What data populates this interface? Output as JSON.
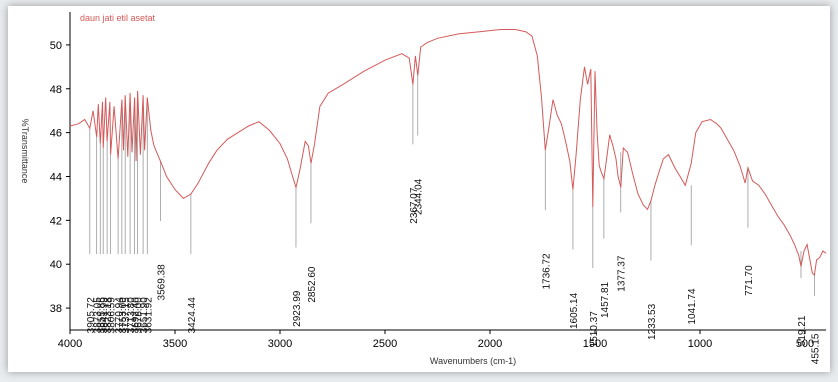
{
  "chart_data": {
    "type": "line",
    "title": "",
    "xlabel": "Wavenumbers (cm-1)",
    "ylabel": "%Transmittance",
    "xlim": [
      4000,
      400
    ],
    "ylim": [
      37,
      51.5
    ],
    "x_reversed": true,
    "x_ticks": [
      4000,
      3500,
      3000,
      2500,
      2000,
      1500,
      1000,
      500
    ],
    "y_ticks": [
      38,
      40,
      42,
      44,
      46,
      48,
      50
    ],
    "grid": false,
    "legend_position": "top-left",
    "series": [
      {
        "name": "daun jati etil asetat",
        "color": "#d45a5a",
        "x": [
          4000,
          3960,
          3930,
          3905.72,
          3890,
          3873.05,
          3865,
          3855.85,
          3845,
          3841.99,
          3830,
          3823.18,
          3810,
          3806.59,
          3790,
          3770.94,
          3753.0,
          3745,
          3737.15,
          3725,
          3713.8,
          3705,
          3692.4,
          3685,
          3678.0,
          3665,
          3651.9,
          3645,
          3631.92,
          3615,
          3600,
          3569.38,
          3540,
          3500,
          3460,
          3424.44,
          3390,
          3340,
          3300,
          3250,
          3200,
          3150,
          3100,
          3050,
          3000,
          2965,
          2940,
          2923.99,
          2905,
          2880,
          2865,
          2852.6,
          2835,
          2810,
          2770,
          2700,
          2600,
          2500,
          2420,
          2385,
          2367.07,
          2355,
          2344.04,
          2330,
          2300,
          2250,
          2150,
          2050,
          1950,
          1880,
          1830,
          1800,
          1775,
          1755,
          1736.72,
          1720,
          1700,
          1680,
          1660,
          1640,
          1620,
          1605.14,
          1590,
          1570,
          1550,
          1535,
          1520,
          1510.37,
          1500,
          1490,
          1480,
          1470,
          1457.81,
          1445,
          1430,
          1415,
          1400,
          1390,
          1377.37,
          1365,
          1345,
          1320,
          1295,
          1270,
          1250,
          1233.53,
          1215,
          1195,
          1175,
          1150,
          1120,
          1095,
          1070,
          1041.74,
          1020,
          990,
          950,
          920,
          900,
          870,
          840,
          810,
          785,
          771.7,
          750,
          720,
          690,
          660,
          630,
          600,
          570,
          550,
          530,
          519.21,
          505,
          490,
          475,
          465,
          455.15,
          445,
          430,
          415,
          400
        ],
        "y": [
          46.3,
          46.4,
          46.6,
          46.2,
          47.0,
          45.8,
          47.3,
          45.5,
          47.4,
          45.3,
          47.6,
          45.6,
          47.4,
          45.0,
          47.2,
          44.8,
          47.5,
          45.2,
          47.7,
          44.9,
          47.8,
          45.1,
          47.6,
          44.7,
          47.9,
          45.0,
          47.7,
          45.2,
          47.6,
          46.1,
          45.4,
          44.7,
          44.0,
          43.4,
          43.0,
          43.2,
          43.7,
          44.6,
          45.2,
          45.7,
          46.0,
          46.3,
          46.5,
          46.1,
          45.5,
          44.8,
          44.0,
          43.5,
          44.3,
          45.6,
          45.4,
          44.6,
          45.5,
          47.2,
          47.8,
          48.2,
          48.8,
          49.3,
          49.6,
          49.4,
          48.2,
          49.5,
          48.6,
          49.9,
          50.1,
          50.3,
          50.5,
          50.6,
          50.7,
          50.7,
          50.6,
          50.4,
          49.5,
          47.6,
          45.2,
          46.2,
          47.5,
          46.8,
          46.4,
          45.6,
          44.7,
          43.4,
          45.0,
          47.5,
          49.0,
          48.2,
          48.9,
          42.6,
          48.8,
          46.0,
          44.5,
          44.2,
          43.9,
          44.8,
          45.9,
          45.4,
          44.8,
          44.0,
          43.5,
          45.3,
          45.1,
          44.1,
          43.2,
          42.7,
          42.5,
          42.9,
          43.6,
          44.2,
          44.8,
          45.0,
          44.4,
          44.0,
          43.6,
          44.6,
          46.0,
          46.5,
          46.6,
          46.4,
          46.2,
          45.7,
          45.2,
          44.5,
          43.7,
          44.4,
          43.8,
          43.6,
          43.2,
          42.7,
          42.2,
          41.8,
          41.3,
          40.9,
          40.4,
          39.9,
          40.6,
          40.9,
          40.1,
          39.6,
          39.5,
          40.2,
          40.3,
          40.6,
          40.5
        ]
      }
    ],
    "annotations": [
      {
        "label": "3905.72",
        "x": 3905.72,
        "y": 46.2
      },
      {
        "label": "3873.05",
        "x": 3873.05,
        "y": 45.8
      },
      {
        "label": "3855.85",
        "x": 3855.85,
        "y": 45.5
      },
      {
        "label": "3841.99",
        "x": 3841.99,
        "y": 45.3
      },
      {
        "label": "3823.18",
        "x": 3823.18,
        "y": 45.6
      },
      {
        "label": "3806.59",
        "x": 3806.59,
        "y": 45.0
      },
      {
        "label": "3770.94",
        "x": 3770.94,
        "y": 44.8
      },
      {
        "label": "3753.00",
        "x": 3753.0,
        "y": 47.5
      },
      {
        "label": "3737.15",
        "x": 3737.15,
        "y": 47.7
      },
      {
        "label": "3713.80",
        "x": 3713.8,
        "y": 47.8
      },
      {
        "label": "3692.40",
        "x": 3692.4,
        "y": 47.6
      },
      {
        "label": "3678.00",
        "x": 3678.0,
        "y": 47.9
      },
      {
        "label": "3651.90",
        "x": 3651.9,
        "y": 47.7
      },
      {
        "label": "3631.92",
        "x": 3631.92,
        "y": 47.6
      },
      {
        "label": "3569.38",
        "x": 3569.38,
        "y": 44.7
      },
      {
        "label": "3424.44",
        "x": 3424.44,
        "y": 43.2
      },
      {
        "label": "2923.99",
        "x": 2923.99,
        "y": 43.5
      },
      {
        "label": "2852.60",
        "x": 2852.6,
        "y": 44.6
      },
      {
        "label": "2367.07",
        "x": 2367.07,
        "y": 48.2
      },
      {
        "label": "2344.04",
        "x": 2344.04,
        "y": 48.6
      },
      {
        "label": "1736.72",
        "x": 1736.72,
        "y": 45.2
      },
      {
        "label": "1605.14",
        "x": 1605.14,
        "y": 43.4
      },
      {
        "label": "1510.37",
        "x": 1510.37,
        "y": 42.6
      },
      {
        "label": "1457.81",
        "x": 1457.81,
        "y": 43.9
      },
      {
        "label": "1377.37",
        "x": 1377.37,
        "y": 45.1
      },
      {
        "label": "1233.53",
        "x": 1233.53,
        "y": 42.9
      },
      {
        "label": "1041.74",
        "x": 1041.74,
        "y": 43.6
      },
      {
        "label": "771.70",
        "x": 771.7,
        "y": 44.4
      },
      {
        "label": "519.21",
        "x": 519.21,
        "y": 40.6
      },
      {
        "label": "455.15",
        "x": 455.15,
        "y": 39.5
      }
    ]
  }
}
